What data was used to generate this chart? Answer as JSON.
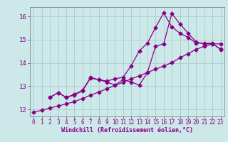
{
  "background_color": "#cce8e8",
  "grid_color": "#aacccc",
  "line_color": "#880088",
  "marker_color": "#880088",
  "xlabel": "Windchill (Refroidissement éolien,°C)",
  "xlim": [
    -0.5,
    23.5
  ],
  "ylim": [
    11.7,
    16.4
  ],
  "xticks": [
    0,
    1,
    2,
    3,
    4,
    5,
    6,
    7,
    8,
    9,
    10,
    11,
    12,
    13,
    14,
    15,
    16,
    17,
    18,
    19,
    20,
    21,
    22,
    23
  ],
  "yticks": [
    12,
    13,
    14,
    15,
    16
  ],
  "line1_x": [
    0,
    1,
    2,
    3,
    4,
    5,
    6,
    7,
    8,
    9,
    10,
    11,
    12,
    13,
    14,
    15,
    16,
    17,
    18,
    19,
    20,
    21,
    22,
    23
  ],
  "line1_y": [
    11.88,
    11.97,
    12.06,
    12.15,
    12.24,
    12.33,
    12.47,
    12.61,
    12.75,
    12.89,
    13.03,
    13.17,
    13.31,
    13.45,
    13.59,
    13.73,
    13.87,
    14.01,
    14.22,
    14.4,
    14.58,
    14.72,
    14.82,
    14.6
  ],
  "line2_x": [
    2,
    3,
    4,
    5,
    6,
    7,
    8,
    9,
    10,
    11,
    12,
    13,
    14,
    15,
    16,
    17,
    18,
    19,
    20,
    21,
    22,
    23
  ],
  "line2_y": [
    12.52,
    12.72,
    12.52,
    12.62,
    12.8,
    13.35,
    13.28,
    13.18,
    13.05,
    13.28,
    13.18,
    13.05,
    13.58,
    14.72,
    14.82,
    16.12,
    15.68,
    15.28,
    14.9,
    14.82,
    14.82,
    14.82
  ],
  "line3_x": [
    2,
    3,
    4,
    5,
    6,
    7,
    8,
    9,
    10,
    11,
    12,
    13,
    14,
    15,
    16,
    17,
    18,
    19,
    20,
    21,
    22,
    23
  ],
  "line3_y": [
    12.52,
    12.72,
    12.52,
    12.65,
    12.82,
    13.38,
    13.28,
    13.22,
    13.32,
    13.38,
    13.88,
    14.52,
    14.85,
    15.52,
    16.15,
    15.55,
    15.28,
    15.1,
    14.85,
    14.85,
    14.85,
    14.58
  ]
}
